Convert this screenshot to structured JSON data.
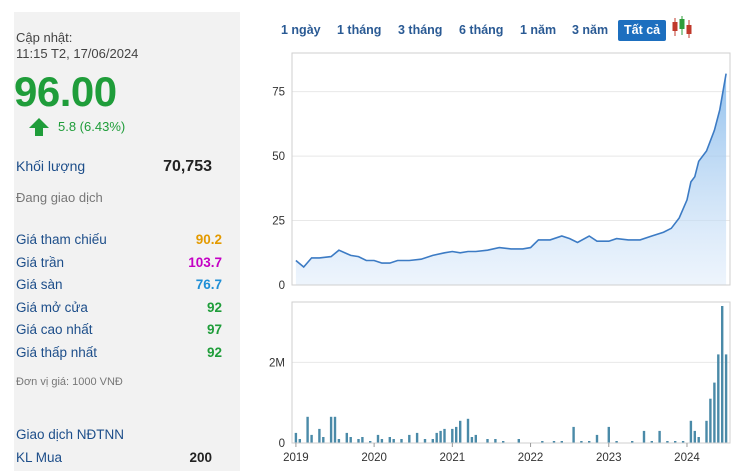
{
  "info": {
    "update_label": "Cập nhật:",
    "update_time": "11:15 T2, 17/06/2024",
    "price": "96.00",
    "change": "5.8 (6.43%)",
    "volume_label": "Khối lượng",
    "volume_value": "70,753",
    "status": "Đang giao dịch",
    "stats": [
      {
        "label": "Giá tham chiếu",
        "value": "90.2",
        "color": "#e39a00"
      },
      {
        "label": "Giá trần",
        "value": "103.7",
        "color": "#c400c4"
      },
      {
        "label": "Giá sàn",
        "value": "76.7",
        "color": "#1f8fd6"
      },
      {
        "label": "Giá mở cửa",
        "value": "92",
        "color": "#1f9d3a"
      },
      {
        "label": "Giá cao nhất",
        "value": "97",
        "color": "#1f9d3a"
      },
      {
        "label": "Giá thấp nhất",
        "value": "92",
        "color": "#1f9d3a"
      }
    ],
    "unit_note": "Đơn vị giá: 1000 VNĐ",
    "foreign_title": "Giao dịch NĐTNN",
    "foreign_buy_label": "KL Mua",
    "foreign_buy_value": "200"
  },
  "tabs": {
    "items": [
      "1 ngày",
      "1 tháng",
      "3 tháng",
      "6 tháng",
      "1 năm",
      "3 năm",
      "Tất cả"
    ],
    "active": "Tất cả"
  },
  "chart_data": {
    "type": "area",
    "x_tick_labels": [
      "2019",
      "2020",
      "2021",
      "2022",
      "2023",
      "2024"
    ],
    "price_axis_ticks": [
      "0",
      "25",
      "50",
      "75"
    ],
    "volume_axis_ticks": [
      "0",
      "2M"
    ],
    "price_ylim": [
      0,
      90
    ],
    "price_series": {
      "t": [
        2019.0,
        2019.1,
        2019.2,
        2019.3,
        2019.45,
        2019.55,
        2019.7,
        2019.8,
        2019.9,
        2020.0,
        2020.1,
        2020.2,
        2020.3,
        2020.45,
        2020.6,
        2020.75,
        2020.9,
        2021.0,
        2021.1,
        2021.2,
        2021.3,
        2021.45,
        2021.6,
        2021.75,
        2021.9,
        2022.0,
        2022.1,
        2022.25,
        2022.4,
        2022.5,
        2022.6,
        2022.75,
        2022.85,
        2023.0,
        2023.1,
        2023.25,
        2023.4,
        2023.55,
        2023.7,
        2023.8,
        2023.9,
        2024.0,
        2024.05,
        2024.1,
        2024.15,
        2024.25,
        2024.35,
        2024.42,
        2024.5
      ],
      "price": [
        9.5,
        7,
        10.5,
        10.5,
        11,
        13.5,
        11.5,
        11,
        9.5,
        9.5,
        8.5,
        8.5,
        9.5,
        9.5,
        10,
        11.5,
        12.5,
        13,
        12.5,
        13,
        13,
        13.5,
        14.5,
        14,
        14,
        14.5,
        17.5,
        17.5,
        19,
        18,
        16.5,
        19,
        17,
        17,
        18,
        17.5,
        17.5,
        19,
        20.5,
        22,
        26,
        33,
        40,
        42,
        48,
        52,
        60,
        68,
        82
      ]
    },
    "volume_ylim": [
      0,
      3500000
    ],
    "volume_series": {
      "t": [
        2019.0,
        2019.05,
        2019.15,
        2019.2,
        2019.3,
        2019.35,
        2019.45,
        2019.5,
        2019.55,
        2019.65,
        2019.7,
        2019.8,
        2019.85,
        2019.95,
        2020.05,
        2020.1,
        2020.2,
        2020.25,
        2020.35,
        2020.45,
        2020.55,
        2020.65,
        2020.75,
        2020.8,
        2020.85,
        2020.9,
        2021.0,
        2021.05,
        2021.1,
        2021.2,
        2021.25,
        2021.3,
        2021.45,
        2021.55,
        2021.65,
        2021.85,
        2022.15,
        2022.3,
        2022.4,
        2022.55,
        2022.65,
        2022.75,
        2022.85,
        2023.0,
        2023.1,
        2023.3,
        2023.45,
        2023.55,
        2023.65,
        2023.75,
        2023.85,
        2023.95,
        2024.05,
        2024.1,
        2024.15,
        2024.25,
        2024.3,
        2024.35,
        2024.4,
        2024.45,
        2024.5
      ],
      "volume": [
        250000,
        100000,
        650000,
        200000,
        350000,
        150000,
        650000,
        650000,
        100000,
        250000,
        150000,
        100000,
        150000,
        50000,
        200000,
        100000,
        150000,
        100000,
        100000,
        200000,
        250000,
        100000,
        100000,
        250000,
        300000,
        350000,
        350000,
        400000,
        550000,
        600000,
        150000,
        200000,
        100000,
        100000,
        50000,
        100000,
        50000,
        50000,
        50000,
        400000,
        50000,
        50000,
        200000,
        400000,
        50000,
        50000,
        300000,
        50000,
        300000,
        50000,
        50000,
        50000,
        550000,
        300000,
        150000,
        550000,
        1100000,
        1500000,
        2200000,
        3400000,
        2200000
      ]
    }
  }
}
